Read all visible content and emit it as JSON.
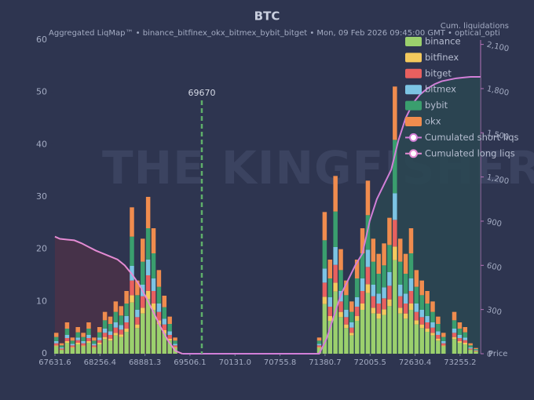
{
  "chart_data": {
    "type": "bar",
    "title": "BTC",
    "subtitle": "Aggregated LiqMap™  •  binance_bitfinex_okx_bitmex_bybit_bitget  •  Mon, 09 Feb 2026 09:45:00 GMT  •  optical_opti",
    "watermark": "THE KINGFISHER .IO",
    "x_label": "Price",
    "y2_label": "Cum. liquidations",
    "current_price": 69670,
    "current_price_color": "#5fae6a",
    "xlim": [
      67610,
      73540
    ],
    "xticks": [
      67631.6,
      68256.4,
      68881.3,
      69506.1,
      {
        "value": 70131,
        "label": "70131.0"
      },
      70755.8,
      71380.7,
      72005.5,
      72630.4,
      73255.2
    ],
    "ylim": [
      0,
      60
    ],
    "yticks": [
      0,
      10,
      20,
      30,
      40,
      50,
      60
    ],
    "y2lim": [
      0,
      2130
    ],
    "y2ticks": [
      0,
      300,
      600,
      900,
      {
        "value": 1200,
        "label": "1,200"
      },
      {
        "value": 1500,
        "label": "1,500"
      },
      {
        "value": 1800,
        "label": "1,800"
      },
      {
        "value": 2100,
        "label": "2,100"
      }
    ],
    "x": [
      67650,
      67725,
      67800,
      67875,
      67950,
      68025,
      68100,
      68175,
      68250,
      68325,
      68400,
      68475,
      68550,
      68625,
      68700,
      68775,
      68850,
      68925,
      69000,
      69075,
      69150,
      69225,
      69300,
      71300,
      71375,
      71450,
      71525,
      71600,
      71675,
      71750,
      71825,
      71900,
      71975,
      72050,
      72125,
      72200,
      72275,
      72350,
      72425,
      72500,
      72575,
      72650,
      72725,
      72800,
      72875,
      72950,
      73025,
      73100,
      73175,
      73250,
      73325,
      73400,
      73475
    ],
    "series": [
      {
        "name": "binance",
        "color": "#9bd06d",
        "values": [
          1.4,
          0.7,
          2.1,
          1.1,
          1.8,
          1.4,
          2.1,
          1.1,
          1.8,
          2.8,
          2.5,
          3.5,
          3.2,
          4.2,
          9.8,
          4.9,
          7.7,
          10.5,
          8.4,
          5.6,
          3.9,
          2.5,
          1.1,
          1.1,
          9.5,
          6.3,
          11.9,
          7,
          4.9,
          3.5,
          6.3,
          8.4,
          11.6,
          7.7,
          6.7,
          7.4,
          9.1,
          17.9,
          7.7,
          6.7,
          8.4,
          5.6,
          4.9,
          4.2,
          3.5,
          2.5,
          1.4,
          0,
          2.8,
          2.1,
          1.8,
          0.7,
          0.4
        ]
      },
      {
        "name": "bitfinex",
        "color": "#f4c95d",
        "values": [
          0.2,
          0.1,
          0.3,
          0.2,
          0.3,
          0.2,
          0.3,
          0.2,
          0.3,
          0.4,
          0.4,
          0.5,
          0.5,
          0.6,
          1.4,
          0.7,
          1.1,
          1.5,
          1.2,
          0.8,
          0.6,
          0.4,
          0.2,
          0.2,
          1.4,
          0.9,
          1.7,
          1,
          0.7,
          0.5,
          0.9,
          1.2,
          1.7,
          1.1,
          1,
          1.1,
          1.3,
          2.6,
          1.1,
          1,
          1.2,
          0.8,
          0.7,
          0.6,
          0.5,
          0.4,
          0.2,
          0,
          0.4,
          0.3,
          0.3,
          0.1,
          0.1
        ]
      },
      {
        "name": "bitget",
        "color": "#e8605f",
        "values": [
          0.4,
          0.2,
          0.6,
          0.3,
          0.5,
          0.4,
          0.6,
          0.3,
          0.5,
          0.8,
          0.7,
          1,
          0.9,
          1.2,
          2.8,
          1.4,
          2.2,
          3,
          2.4,
          1.6,
          1.1,
          0.7,
          0.3,
          0.3,
          2.7,
          1.8,
          3.4,
          2,
          1.4,
          1,
          1.8,
          2.4,
          3.3,
          2.2,
          1.9,
          2.1,
          2.6,
          5.1,
          2.2,
          1.9,
          2.4,
          1.6,
          1.4,
          1.2,
          1,
          0.7,
          0.4,
          0,
          0.8,
          0.6,
          0.5,
          0.2,
          0.1
        ]
      },
      {
        "name": "bitmex",
        "color": "#7cc4e4",
        "values": [
          0.4,
          0.2,
          0.6,
          0.3,
          0.5,
          0.4,
          0.6,
          0.3,
          0.5,
          0.8,
          0.7,
          1,
          0.9,
          1.2,
          2.8,
          1.4,
          2.2,
          3,
          2.4,
          1.6,
          1.1,
          0.7,
          0.3,
          0.3,
          2.7,
          1.8,
          3.4,
          2,
          1.4,
          1,
          1.8,
          2.4,
          3.3,
          2.2,
          1.9,
          2.1,
          2.6,
          5.1,
          2.2,
          1.9,
          2.4,
          1.6,
          1.4,
          1.2,
          1,
          0.7,
          0.4,
          0,
          0.8,
          0.6,
          0.5,
          0.2,
          0.1
        ]
      },
      {
        "name": "bybit",
        "color": "#3a9e6e",
        "values": [
          0.8,
          0.4,
          1.2,
          0.6,
          1,
          0.8,
          1.2,
          0.6,
          1,
          1.6,
          1.4,
          2,
          1.8,
          2.4,
          5.6,
          2.8,
          4.4,
          6,
          4.8,
          3.2,
          2.2,
          1.4,
          0.6,
          0.6,
          5.4,
          3.6,
          6.8,
          4,
          2.8,
          2,
          3.6,
          4.8,
          6.6,
          4.4,
          3.8,
          4.2,
          5.2,
          10.2,
          4.4,
          3.8,
          4.8,
          3.2,
          2.8,
          2.4,
          2,
          1.4,
          0.8,
          0,
          1.6,
          1.2,
          1,
          0.4,
          0.2
        ]
      },
      {
        "name": "okx",
        "color": "#f08c4e",
        "values": [
          0.8,
          0.4,
          1.2,
          0.6,
          1,
          0.8,
          1.2,
          0.6,
          1,
          1.6,
          1.4,
          2,
          1.8,
          2.4,
          5.6,
          2.8,
          4.4,
          6,
          4.8,
          3.2,
          2.2,
          1.4,
          0.6,
          0.6,
          5.4,
          3.6,
          6.8,
          4,
          2.8,
          2,
          3.6,
          4.8,
          6.6,
          4.4,
          3.8,
          4.2,
          5.2,
          10.2,
          4.4,
          3.8,
          4.8,
          3.2,
          2.8,
          2.4,
          2,
          1.4,
          0.8,
          0,
          1.6,
          1.2,
          1,
          0.4,
          0.2
        ]
      }
    ],
    "cumulative": [
      {
        "name": "Cumulated short liqs",
        "color": "#d27fd8",
        "fill": "#2a4651",
        "axis": "y2",
        "x": [
          69400,
          71300,
          71400,
          71500,
          71600,
          71700,
          71800,
          71900,
          72000,
          72100,
          72200,
          72300,
          72400,
          72500,
          72600,
          72700,
          72800,
          72900,
          73000,
          73100,
          73200,
          73300,
          73400,
          73538
        ],
        "values": [
          0,
          0,
          100,
          250,
          400,
          500,
          600,
          680,
          900,
          1050,
          1150,
          1250,
          1450,
          1600,
          1700,
          1760,
          1800,
          1830,
          1850,
          1860,
          1870,
          1875,
          1880,
          1880
        ]
      },
      {
        "name": "Cumulated long liqs",
        "color": "#e48bd3",
        "fill": "#4a3148",
        "axis": "y2",
        "x": [
          67631,
          67700,
          67800,
          67900,
          68000,
          68100,
          68200,
          68300,
          68400,
          68500,
          68600,
          68700,
          68800,
          68900,
          69000,
          69100,
          69200,
          69300,
          69400
        ],
        "values": [
          795,
          780,
          775,
          770,
          750,
          725,
          700,
          680,
          660,
          640,
          600,
          540,
          470,
          380,
          280,
          180,
          90,
          20,
          0
        ]
      }
    ]
  }
}
